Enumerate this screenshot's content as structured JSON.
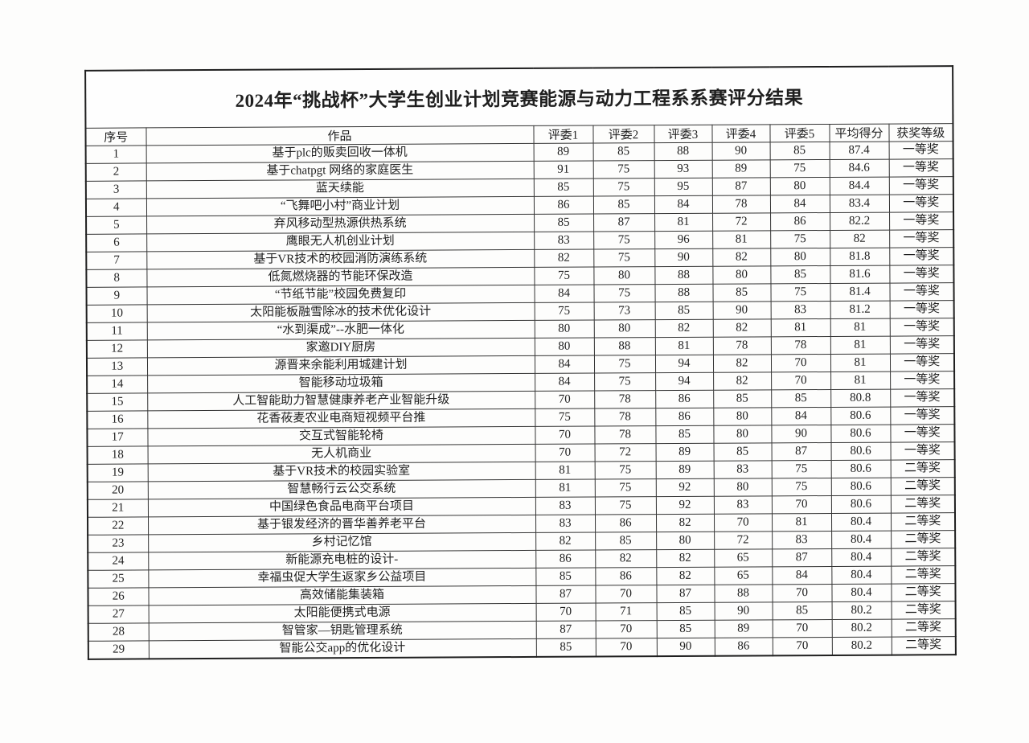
{
  "document": {
    "title": "2024年“挑战杯”大学生创业计划竞赛能源与动力工程系系赛评分结果",
    "table": {
      "columns": [
        "序号",
        "作品",
        "评委1",
        "评委2",
        "评委3",
        "评委4",
        "评委5",
        "平均得分",
        "获奖等级"
      ],
      "rows": [
        [
          1,
          "基于plc的贩卖回收一体机",
          89,
          85,
          88,
          90,
          85,
          "87.4",
          "一等奖"
        ],
        [
          2,
          "基于chatpgt 网络的家庭医生",
          91,
          75,
          93,
          89,
          75,
          "84.6",
          "一等奖"
        ],
        [
          3,
          "蓝天续能",
          85,
          75,
          95,
          87,
          80,
          "84.4",
          "一等奖"
        ],
        [
          4,
          "“飞舞吧小村”商业计划",
          86,
          85,
          84,
          78,
          84,
          "83.4",
          "一等奖"
        ],
        [
          5,
          "弃风移动型热源供热系统",
          85,
          87,
          81,
          72,
          86,
          "82.2",
          "一等奖"
        ],
        [
          6,
          "鹰眼无人机创业计划",
          83,
          75,
          96,
          81,
          75,
          "82",
          "一等奖"
        ],
        [
          7,
          "基于VR技术的校园消防演练系统",
          82,
          75,
          90,
          82,
          80,
          "81.8",
          "一等奖"
        ],
        [
          8,
          "低氮燃烧器的节能环保改造",
          75,
          80,
          88,
          80,
          85,
          "81.6",
          "一等奖"
        ],
        [
          9,
          "“节纸节能”校园免费复印",
          84,
          75,
          88,
          85,
          75,
          "81.4",
          "一等奖"
        ],
        [
          10,
          "太阳能板融雪除冰的技术优化设计",
          75,
          73,
          85,
          90,
          83,
          "81.2",
          "一等奖"
        ],
        [
          11,
          "“水到渠成”--水肥一体化",
          80,
          80,
          82,
          82,
          81,
          "81",
          "一等奖"
        ],
        [
          12,
          "家邀DIY厨房",
          80,
          88,
          81,
          78,
          78,
          "81",
          "一等奖"
        ],
        [
          13,
          "源晋来余能利用城建计划",
          84,
          75,
          94,
          82,
          70,
          "81",
          "一等奖"
        ],
        [
          14,
          "智能移动垃圾箱",
          84,
          75,
          94,
          82,
          70,
          "81",
          "一等奖"
        ],
        [
          15,
          "人工智能助力智慧健康养老产业智能升级",
          70,
          78,
          86,
          85,
          85,
          "80.8",
          "一等奖"
        ],
        [
          16,
          "花香莜麦农业电商短视频平台推",
          75,
          78,
          86,
          80,
          84,
          "80.6",
          "一等奖"
        ],
        [
          17,
          "交互式智能轮椅",
          70,
          78,
          85,
          80,
          90,
          "80.6",
          "一等奖"
        ],
        [
          18,
          "无人机商业",
          70,
          72,
          89,
          85,
          87,
          "80.6",
          "一等奖"
        ],
        [
          19,
          "基于VR技术的校园实验室",
          81,
          75,
          89,
          83,
          75,
          "80.6",
          "二等奖"
        ],
        [
          20,
          "智慧畅行云公交系统",
          81,
          75,
          92,
          80,
          75,
          "80.6",
          "二等奖"
        ],
        [
          21,
          "中国绿色食品电商平台项目",
          83,
          75,
          92,
          83,
          70,
          "80.6",
          "二等奖"
        ],
        [
          22,
          "基于银发经济的晋华善养老平台",
          83,
          86,
          82,
          70,
          81,
          "80.4",
          "二等奖"
        ],
        [
          23,
          "乡村记忆馆",
          82,
          85,
          80,
          72,
          83,
          "80.4",
          "二等奖"
        ],
        [
          24,
          "新能源充电桩的设计-",
          86,
          82,
          82,
          65,
          87,
          "80.4",
          "二等奖"
        ],
        [
          25,
          "幸福虫促大学生返家乡公益项目",
          85,
          86,
          82,
          65,
          84,
          "80.4",
          "二等奖"
        ],
        [
          26,
          "高效储能集装箱",
          87,
          70,
          87,
          88,
          70,
          "80.4",
          "二等奖"
        ],
        [
          27,
          "太阳能便携式电源",
          70,
          71,
          85,
          90,
          85,
          "80.2",
          "二等奖"
        ],
        [
          28,
          "智管家—钥匙管理系统",
          87,
          70,
          85,
          89,
          70,
          "80.2",
          "二等奖"
        ],
        [
          29,
          "智能公交app的优化设计",
          85,
          70,
          90,
          86,
          70,
          "80.2",
          "二等奖"
        ]
      ]
    }
  }
}
